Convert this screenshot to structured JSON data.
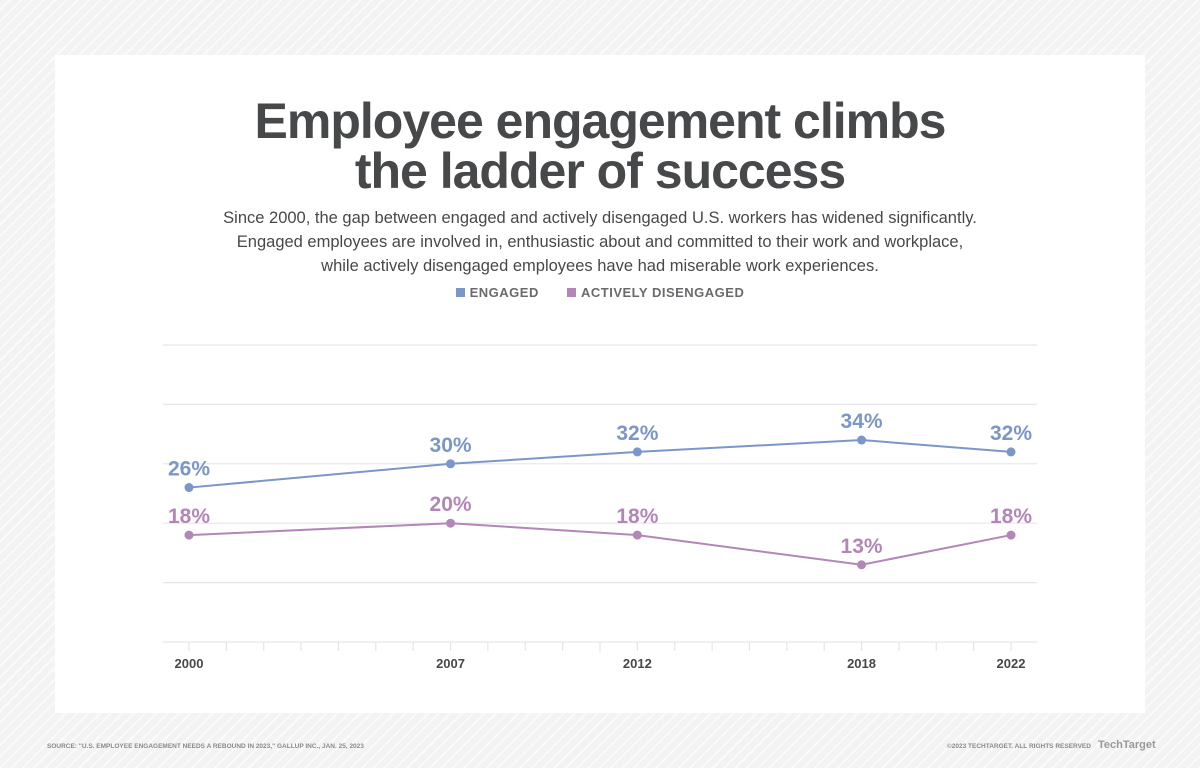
{
  "title_line1": "Employee engagement climbs",
  "title_line2": "the ladder of success",
  "subtitle": [
    "Since 2000, the gap between engaged and actively disengaged U.S. workers has widened significantly.",
    "Engaged employees are involved in, enthusiastic about and committed to their work and workplace,",
    "while actively disengaged employees have had miserable work experiences."
  ],
  "footer": {
    "source": "SOURCE: \"U.S. EMPLOYEE ENGAGEMENT NEEDS A REBOUND IN 2023,\" GALLUP INC., JAN. 25, 2023",
    "copyright": "©2023 TECHTARGET. ALL RIGHTS RESERVED",
    "logo": "TechTarget"
  },
  "chart_data": {
    "type": "line",
    "x": [
      2000,
      2007,
      2012,
      2018,
      2022
    ],
    "xlim": [
      2000,
      2022
    ],
    "ylim": [
      0,
      50
    ],
    "grid": true,
    "legend": "top-center",
    "series": [
      {
        "name": "ENGAGED",
        "color": "#7b96c8",
        "values": [
          26,
          30,
          32,
          34,
          32
        ],
        "labels": [
          "26%",
          "30%",
          "32%",
          "34%",
          "32%"
        ]
      },
      {
        "name": "ACTIVELY DISENGAGED",
        "color": "#b386b8",
        "values": [
          18,
          20,
          18,
          13,
          18
        ],
        "labels": [
          "18%",
          "20%",
          "18%",
          "13%",
          "18%"
        ]
      }
    ]
  }
}
